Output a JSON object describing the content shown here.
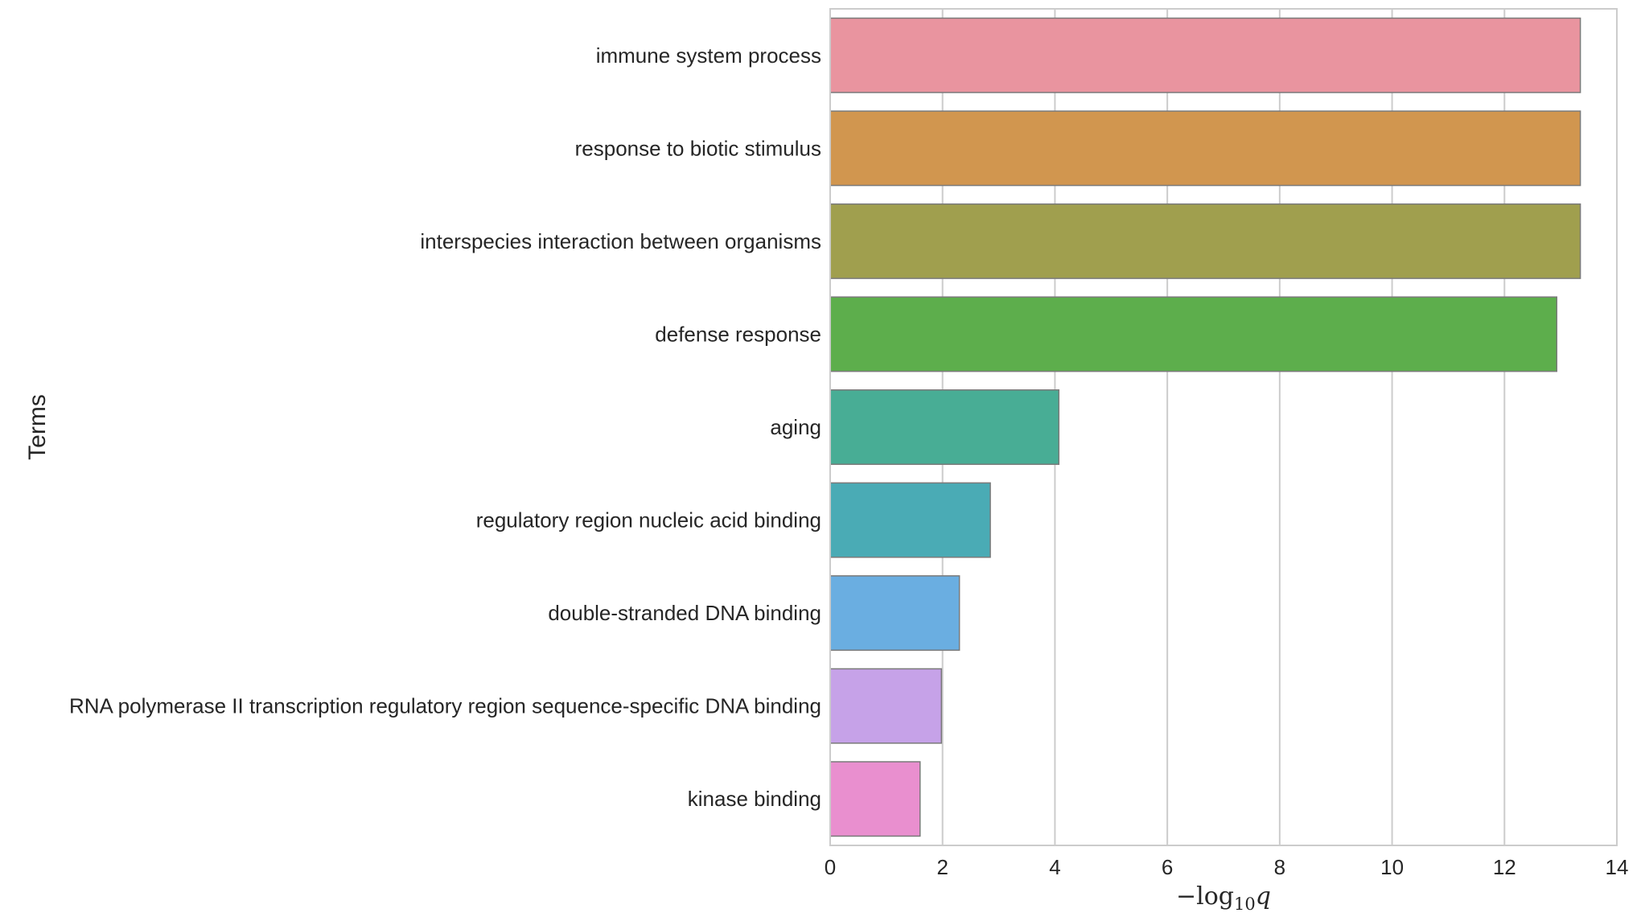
{
  "chart_data": {
    "type": "bar",
    "orientation": "horizontal",
    "categories": [
      "immune system process",
      "response to biotic stimulus",
      "interspecies interaction between organisms",
      "defense response",
      "aging",
      "regulatory region nucleic acid binding",
      "double-stranded DNA binding",
      "RNA polymerase II transcription regulatory region sequence-specific DNA binding",
      "kinase binding"
    ],
    "values": [
      13.35,
      13.35,
      13.35,
      12.93,
      4.07,
      2.85,
      2.3,
      1.98,
      1.6
    ],
    "colors": [
      "#e9949f",
      "#d1964f",
      "#a09f4e",
      "#5dae4c",
      "#48ad95",
      "#4aabb5",
      "#6aaee1",
      "#c6a2e8",
      "#e98fcf"
    ],
    "xlabel_parts": {
      "prefix": "−log",
      "sub": "10",
      "var": "q"
    },
    "ylabel": "Terms",
    "xlim": [
      0,
      14
    ],
    "xticks": [
      0,
      2,
      4,
      6,
      8,
      10,
      12,
      14
    ],
    "grid": true
  }
}
